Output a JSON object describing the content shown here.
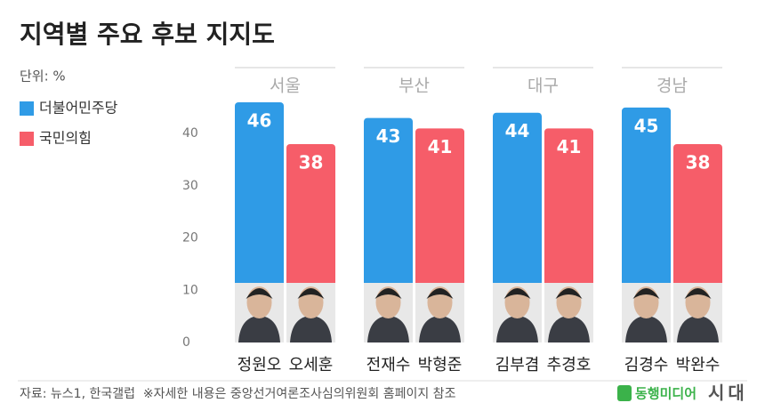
{
  "chart_data": {
    "type": "bar",
    "title": "지역별 주요 후보 지지도",
    "unit": "단위: %",
    "categories": [
      "서울",
      "부산",
      "대구",
      "경남"
    ],
    "candidates": [
      [
        "정원오",
        "오세훈"
      ],
      [
        "전재수",
        "박형준"
      ],
      [
        "김부겸",
        "추경호"
      ],
      [
        "김경수",
        "박완수"
      ]
    ],
    "series": [
      {
        "name": "더불어민주당",
        "color": "#2f9be6",
        "values": [
          46,
          43,
          44,
          45
        ]
      },
      {
        "name": "국민의힘",
        "color": "#f65d69",
        "values": [
          38,
          41,
          41,
          38
        ]
      }
    ],
    "ylim": [
      0,
      50
    ],
    "yticks": [
      0,
      10,
      20,
      30,
      40
    ],
    "source": "자료: 뉴스1, 한국갤럽  ※자세한 내용은 중앙선거여론조사심의위원회 홈페이지 참조",
    "logo": [
      "동행미디어",
      "시대"
    ]
  }
}
